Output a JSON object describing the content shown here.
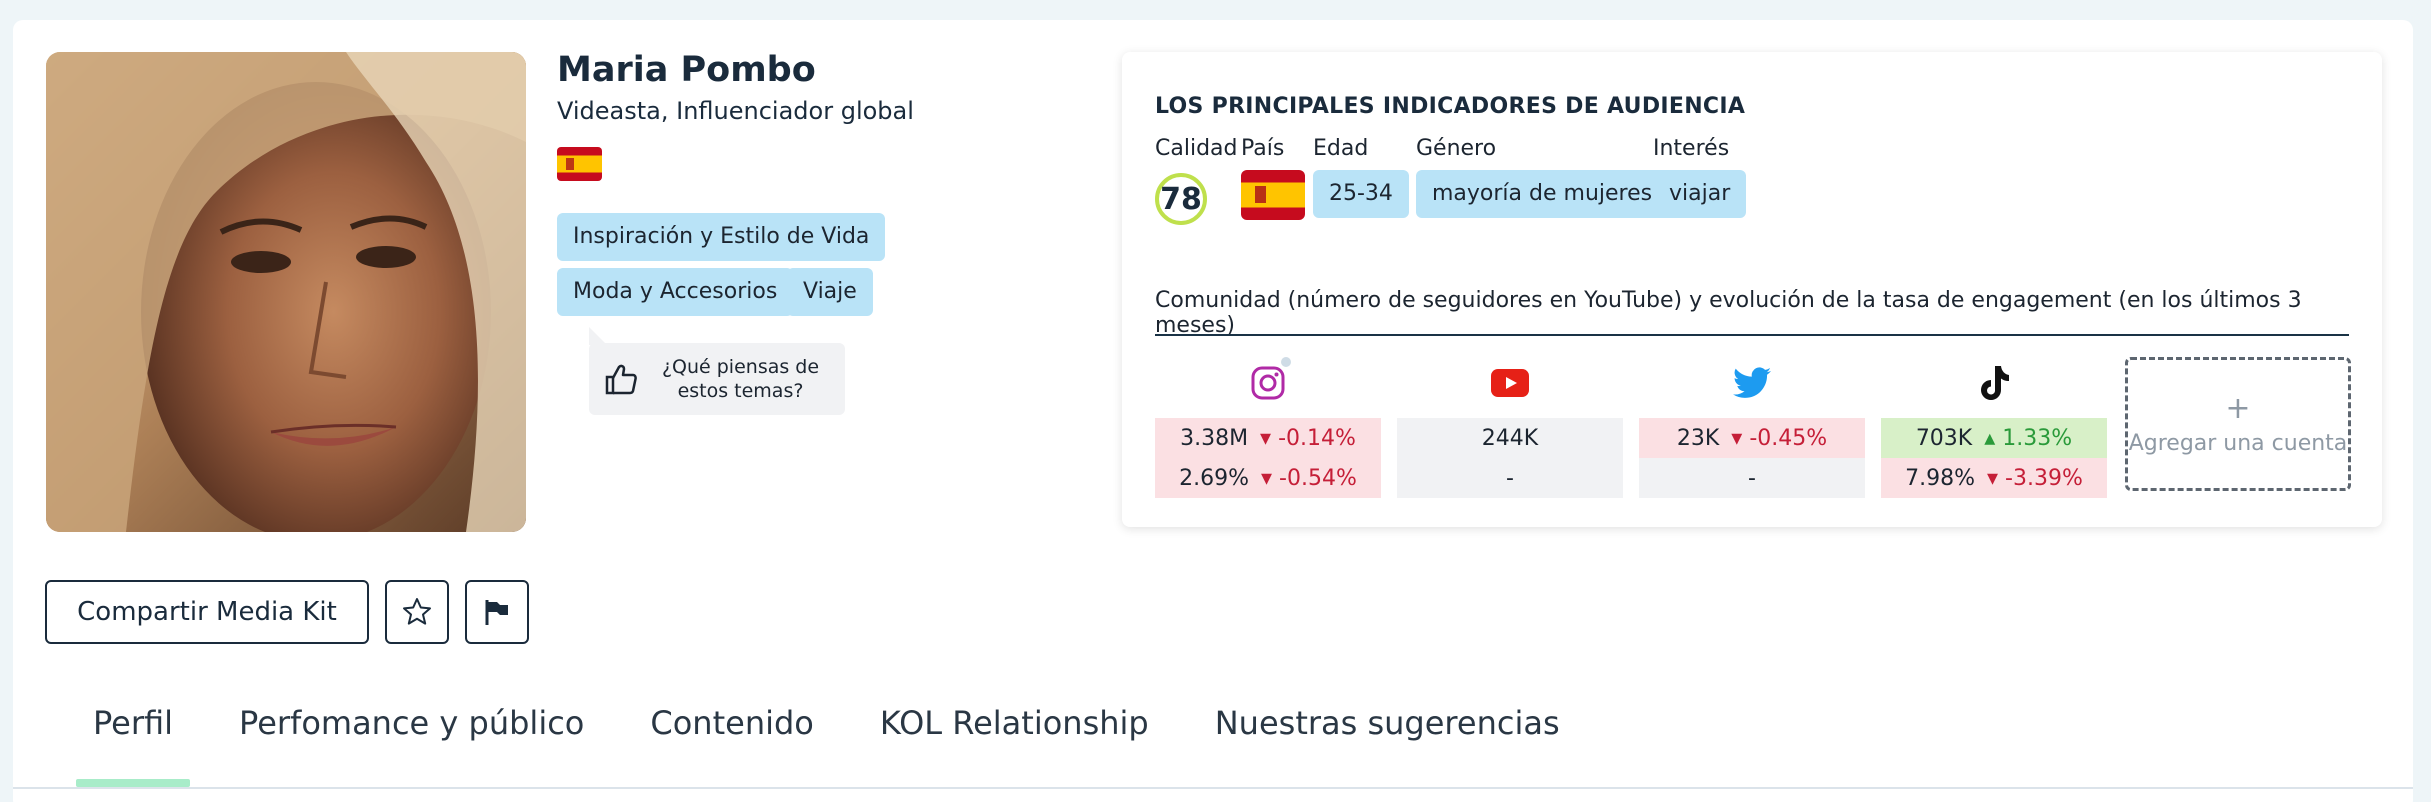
{
  "profile": {
    "name": "Maria Pombo",
    "subtitle": "Videasta, Influenciador global",
    "tags": [
      "Inspiración y Estilo de Vida",
      "Moda y Accesorios",
      "Viaje"
    ],
    "feedback": "¿Qué piensas de estos temas?"
  },
  "actions": {
    "share_label": "Compartir Media Kit",
    "star_icon": "star-icon",
    "flag_icon": "flag-icon"
  },
  "tabs": [
    "Perfil",
    "Perfomance y público",
    "Contenido",
    "KOL Relationship",
    "Nuestras sugerencias"
  ],
  "audience": {
    "title": "LOS PRINCIPALES INDICADORES DE AUDIENCIA",
    "labels": {
      "quality": "Calidad",
      "country": "País",
      "age": "Edad",
      "gender": "Género",
      "interest": "Interés"
    },
    "quality_score": "78",
    "age": "25-34",
    "gender": "mayoría de mujeres",
    "interest": "viajar"
  },
  "community": {
    "title": "Comunidad (número de seguidores en YouTube) y evolución de la tasa de engagement (en los últimos 3 meses)",
    "networks": [
      {
        "name": "instagram",
        "icon": "instagram-icon",
        "followers": "3.38M",
        "followers_change": "-0.14%",
        "followers_trend": "down",
        "engagement": "2.69%",
        "engagement_change": "-0.54%",
        "engagement_trend": "down"
      },
      {
        "name": "youtube",
        "icon": "youtube-icon",
        "followers": "244K",
        "followers_change": "",
        "followers_trend": "none",
        "engagement": "-",
        "engagement_change": "",
        "engagement_trend": "none"
      },
      {
        "name": "twitter",
        "icon": "twitter-icon",
        "followers": "23K",
        "followers_change": "-0.45%",
        "followers_trend": "down",
        "engagement": "-",
        "engagement_change": "",
        "engagement_trend": "none"
      },
      {
        "name": "tiktok",
        "icon": "tiktok-icon",
        "followers": "703K",
        "followers_change": "1.33%",
        "followers_trend": "up",
        "engagement": "7.98%",
        "engagement_change": "-3.39%",
        "engagement_trend": "down"
      }
    ],
    "add_account_plus": "+",
    "add_account_label": "Agregar una cuenta"
  },
  "colors": {
    "tag_bg": "#b9e3f7",
    "quality_ring": "#bfe04c",
    "negative": "#c51f38",
    "positive": "#2a9a3a",
    "tab_underline": "#a8ecc9"
  }
}
